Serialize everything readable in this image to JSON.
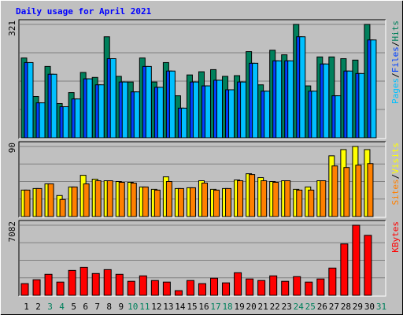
{
  "chart_data": [
    {
      "type": "bar",
      "title": "Daily usage for April 2021",
      "legend_separator": "/",
      "categories": [
        "1",
        "2",
        "3",
        "4",
        "5",
        "6",
        "7",
        "8",
        "9",
        "10",
        "11",
        "12",
        "13",
        "14",
        "15",
        "16",
        "17",
        "18",
        "19",
        "20",
        "21",
        "22",
        "23",
        "24",
        "25",
        "26",
        "27",
        "28",
        "29",
        "30",
        "31"
      ],
      "category_colors": [
        "#000000",
        "#000000",
        "#00805c",
        "#00805c",
        "#000000",
        "#000000",
        "#000000",
        "#000000",
        "#000000",
        "#00805c",
        "#00805c",
        "#000000",
        "#000000",
        "#000000",
        "#000000",
        "#000000",
        "#00805c",
        "#00805c",
        "#000000",
        "#000000",
        "#000000",
        "#000000",
        "#000000",
        "#00805c",
        "#00805c",
        "#000000",
        "#000000",
        "#000000",
        "#000000",
        "#000000",
        "#00805c"
      ],
      "series": [
        {
          "name": "Hits",
          "color": "#00805c",
          "values": [
            226,
            117,
            202,
            97,
            128,
            185,
            171,
            286,
            174,
            158,
            226,
            158,
            213,
            119,
            178,
            187,
            193,
            174,
            176,
            244,
            150,
            248,
            235,
            321,
            147,
            229,
            229,
            224,
            220,
            321,
            null
          ]
        },
        {
          "name": "Files",
          "color": "#0040ff",
          "values": [
            213,
            99,
            180,
            88,
            110,
            167,
            150,
            224,
            158,
            130,
            202,
            143,
            189,
            84,
            158,
            147,
            163,
            136,
            158,
            211,
            132,
            218,
            218,
            286,
            132,
            209,
            119,
            189,
            182,
            277,
            null
          ]
        },
        {
          "name": "Pages",
          "color": "#00c0ff",
          "values": [
            213,
            99,
            180,
            88,
            110,
            167,
            150,
            224,
            158,
            130,
            202,
            143,
            189,
            84,
            158,
            147,
            163,
            136,
            158,
            211,
            132,
            218,
            218,
            286,
            132,
            209,
            119,
            189,
            182,
            277,
            null
          ]
        }
      ],
      "ylim": [
        0,
        321
      ],
      "yticks": [
        321
      ]
    },
    {
      "type": "bar",
      "series": [
        {
          "name": "Visits",
          "color": "#ffff00",
          "values": [
            34,
            36,
            42,
            27,
            38,
            53,
            48,
            46,
            45,
            44,
            38,
            35,
            51,
            36,
            37,
            46,
            35,
            36,
            47,
            55,
            50,
            45,
            46,
            35,
            38,
            46,
            78,
            86,
            90,
            86,
            null
          ]
        },
        {
          "name": "Sites",
          "color": "#ff8000",
          "values": [
            34,
            36,
            42,
            22,
            38,
            42,
            46,
            46,
            44,
            43,
            38,
            34,
            45,
            36,
            37,
            43,
            34,
            36,
            46,
            54,
            46,
            44,
            46,
            34,
            34,
            46,
            65,
            63,
            66,
            68,
            null
          ]
        }
      ],
      "ylim": [
        0,
        90
      ],
      "yticks": [
        90
      ]
    },
    {
      "type": "bar",
      "series": [
        {
          "name": "KBytes",
          "color": "#ff0000",
          "values": [
            1180,
            1574,
            2125,
            1338,
            2518,
            2833,
            2204,
            2597,
            2125,
            1417,
            1967,
            1495,
            1338,
            472,
            1495,
            1180,
            1731,
            1259,
            2282,
            1653,
            1495,
            1967,
            1417,
            1889,
            1338,
            1653,
            2754,
            5194,
            7082,
            6060,
            null
          ]
        }
      ],
      "ylim": [
        0,
        7082
      ],
      "yticks": [
        7082
      ]
    }
  ]
}
